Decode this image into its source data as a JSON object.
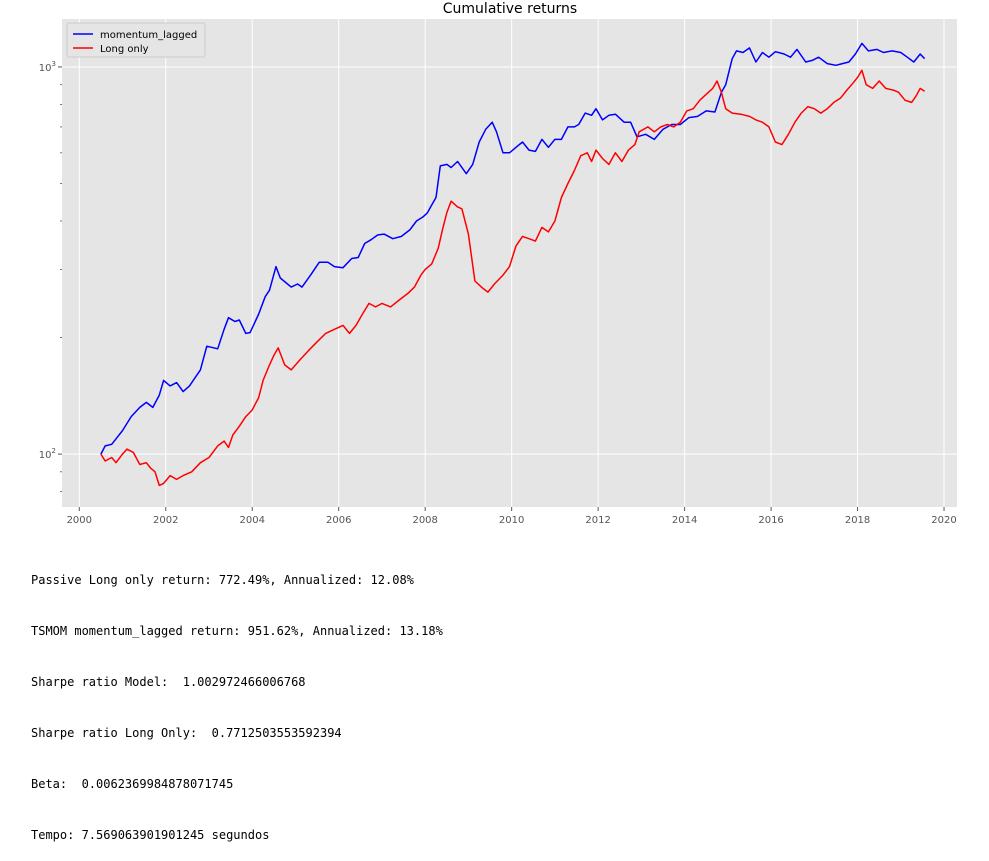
{
  "chart_data": {
    "type": "line",
    "title": "Cumulative returns",
    "xlabel": "",
    "ylabel": "",
    "y_scale": "log",
    "xlim": [
      1999.6,
      2020.3
    ],
    "ylim": [
      73,
      1330
    ],
    "x_ticks": [
      2000,
      2002,
      2004,
      2006,
      2008,
      2010,
      2012,
      2014,
      2016,
      2018,
      2020
    ],
    "y_ticks": [
      {
        "value": 100,
        "base": "10",
        "exp": "2"
      },
      {
        "value": 1000,
        "base": "10",
        "exp": "3"
      }
    ],
    "y_minor_ticks": [
      80,
      90,
      200,
      300,
      400,
      500,
      600,
      700,
      800,
      900
    ],
    "grid": true,
    "legend_position": "top-left",
    "background": "#e5e5e5",
    "series": [
      {
        "name": "momentum_lagged",
        "color": "#0000ff",
        "points": [
          [
            2000.5,
            100
          ],
          [
            2000.6,
            105
          ],
          [
            2000.75,
            106
          ],
          [
            2001.0,
            115
          ],
          [
            2001.2,
            125
          ],
          [
            2001.4,
            132
          ],
          [
            2001.55,
            136
          ],
          [
            2001.7,
            132
          ],
          [
            2001.85,
            142
          ],
          [
            2001.95,
            155
          ],
          [
            2002.1,
            150
          ],
          [
            2002.25,
            153
          ],
          [
            2002.4,
            145
          ],
          [
            2002.55,
            150
          ],
          [
            2002.8,
            165
          ],
          [
            2002.95,
            190
          ],
          [
            2003.2,
            187
          ],
          [
            2003.35,
            210
          ],
          [
            2003.45,
            225
          ],
          [
            2003.6,
            220
          ],
          [
            2003.7,
            222
          ],
          [
            2003.85,
            205
          ],
          [
            2003.95,
            206
          ],
          [
            2004.15,
            230
          ],
          [
            2004.3,
            255
          ],
          [
            2004.4,
            265
          ],
          [
            2004.55,
            305
          ],
          [
            2004.65,
            285
          ],
          [
            2004.9,
            270
          ],
          [
            2005.05,
            275
          ],
          [
            2005.15,
            270
          ],
          [
            2005.35,
            290
          ],
          [
            2005.55,
            313
          ],
          [
            2005.75,
            313
          ],
          [
            2005.9,
            305
          ],
          [
            2006.1,
            303
          ],
          [
            2006.3,
            320
          ],
          [
            2006.45,
            322
          ],
          [
            2006.6,
            350
          ],
          [
            2006.75,
            358
          ],
          [
            2006.9,
            368
          ],
          [
            2007.05,
            370
          ],
          [
            2007.25,
            360
          ],
          [
            2007.45,
            365
          ],
          [
            2007.65,
            380
          ],
          [
            2007.8,
            400
          ],
          [
            2007.95,
            410
          ],
          [
            2008.05,
            420
          ],
          [
            2008.15,
            440
          ],
          [
            2008.25,
            460
          ],
          [
            2008.35,
            555
          ],
          [
            2008.5,
            560
          ],
          [
            2008.6,
            550
          ],
          [
            2008.75,
            570
          ],
          [
            2008.95,
            530
          ],
          [
            2009.1,
            560
          ],
          [
            2009.25,
            640
          ],
          [
            2009.4,
            690
          ],
          [
            2009.55,
            720
          ],
          [
            2009.65,
            680
          ],
          [
            2009.8,
            600
          ],
          [
            2009.95,
            600
          ],
          [
            2010.1,
            620
          ],
          [
            2010.25,
            640
          ],
          [
            2010.4,
            610
          ],
          [
            2010.55,
            605
          ],
          [
            2010.7,
            650
          ],
          [
            2010.85,
            620
          ],
          [
            2011.0,
            650
          ],
          [
            2011.15,
            650
          ],
          [
            2011.3,
            700
          ],
          [
            2011.45,
            700
          ],
          [
            2011.55,
            710
          ],
          [
            2011.7,
            760
          ],
          [
            2011.85,
            750
          ],
          [
            2011.95,
            780
          ],
          [
            2012.1,
            730
          ],
          [
            2012.25,
            750
          ],
          [
            2012.4,
            755
          ],
          [
            2012.6,
            720
          ],
          [
            2012.75,
            720
          ],
          [
            2012.9,
            660
          ],
          [
            2013.1,
            670
          ],
          [
            2013.3,
            650
          ],
          [
            2013.5,
            690
          ],
          [
            2013.7,
            710
          ],
          [
            2013.9,
            710
          ],
          [
            2014.1,
            740
          ],
          [
            2014.3,
            745
          ],
          [
            2014.5,
            770
          ],
          [
            2014.7,
            765
          ],
          [
            2014.85,
            860
          ],
          [
            2014.95,
            900
          ],
          [
            2015.1,
            1050
          ],
          [
            2015.2,
            1100
          ],
          [
            2015.35,
            1090
          ],
          [
            2015.5,
            1120
          ],
          [
            2015.65,
            1030
          ],
          [
            2015.8,
            1090
          ],
          [
            2015.95,
            1060
          ],
          [
            2016.1,
            1095
          ],
          [
            2016.3,
            1080
          ],
          [
            2016.45,
            1060
          ],
          [
            2016.6,
            1110
          ],
          [
            2016.8,
            1030
          ],
          [
            2016.95,
            1040
          ],
          [
            2017.1,
            1060
          ],
          [
            2017.3,
            1020
          ],
          [
            2017.5,
            1010
          ],
          [
            2017.65,
            1020
          ],
          [
            2017.8,
            1030
          ],
          [
            2017.95,
            1080
          ],
          [
            2018.1,
            1150
          ],
          [
            2018.25,
            1100
          ],
          [
            2018.45,
            1110
          ],
          [
            2018.6,
            1090
          ],
          [
            2018.8,
            1100
          ],
          [
            2019.0,
            1090
          ],
          [
            2019.15,
            1060
          ],
          [
            2019.3,
            1030
          ],
          [
            2019.45,
            1080
          ],
          [
            2019.55,
            1050
          ]
        ]
      },
      {
        "name": "Long only",
        "color": "#ff0000",
        "points": [
          [
            2000.5,
            100
          ],
          [
            2000.6,
            96
          ],
          [
            2000.75,
            98
          ],
          [
            2000.85,
            95
          ],
          [
            2001.0,
            100
          ],
          [
            2001.1,
            103
          ],
          [
            2001.25,
            101
          ],
          [
            2001.4,
            94
          ],
          [
            2001.55,
            95
          ],
          [
            2001.65,
            92
          ],
          [
            2001.75,
            90
          ],
          [
            2001.85,
            83
          ],
          [
            2001.95,
            84
          ],
          [
            2002.1,
            88
          ],
          [
            2002.25,
            86
          ],
          [
            2002.4,
            88
          ],
          [
            2002.6,
            90
          ],
          [
            2002.8,
            95
          ],
          [
            2003.0,
            98
          ],
          [
            2003.2,
            105
          ],
          [
            2003.35,
            108
          ],
          [
            2003.45,
            104
          ],
          [
            2003.55,
            112
          ],
          [
            2003.7,
            118
          ],
          [
            2003.85,
            125
          ],
          [
            2004.0,
            130
          ],
          [
            2004.15,
            140
          ],
          [
            2004.25,
            155
          ],
          [
            2004.4,
            170
          ],
          [
            2004.5,
            180
          ],
          [
            2004.6,
            188
          ],
          [
            2004.75,
            170
          ],
          [
            2004.9,
            165
          ],
          [
            2005.1,
            175
          ],
          [
            2005.3,
            185
          ],
          [
            2005.5,
            195
          ],
          [
            2005.7,
            205
          ],
          [
            2005.9,
            210
          ],
          [
            2006.1,
            215
          ],
          [
            2006.25,
            205
          ],
          [
            2006.4,
            215
          ],
          [
            2006.55,
            230
          ],
          [
            2006.7,
            245
          ],
          [
            2006.85,
            240
          ],
          [
            2007.0,
            245
          ],
          [
            2007.2,
            240
          ],
          [
            2007.4,
            250
          ],
          [
            2007.6,
            260
          ],
          [
            2007.75,
            270
          ],
          [
            2007.9,
            290
          ],
          [
            2008.0,
            300
          ],
          [
            2008.15,
            310
          ],
          [
            2008.3,
            340
          ],
          [
            2008.4,
            380
          ],
          [
            2008.5,
            420
          ],
          [
            2008.6,
            450
          ],
          [
            2008.75,
            435
          ],
          [
            2008.85,
            430
          ],
          [
            2009.0,
            370
          ],
          [
            2009.15,
            280
          ],
          [
            2009.3,
            270
          ],
          [
            2009.45,
            262
          ],
          [
            2009.6,
            275
          ],
          [
            2009.8,
            290
          ],
          [
            2009.95,
            305
          ],
          [
            2010.1,
            345
          ],
          [
            2010.25,
            365
          ],
          [
            2010.4,
            360
          ],
          [
            2010.55,
            355
          ],
          [
            2010.7,
            385
          ],
          [
            2010.85,
            375
          ],
          [
            2011.0,
            400
          ],
          [
            2011.15,
            460
          ],
          [
            2011.3,
            500
          ],
          [
            2011.45,
            540
          ],
          [
            2011.6,
            590
          ],
          [
            2011.75,
            600
          ],
          [
            2011.85,
            570
          ],
          [
            2011.95,
            610
          ],
          [
            2012.1,
            580
          ],
          [
            2012.25,
            560
          ],
          [
            2012.4,
            600
          ],
          [
            2012.55,
            570
          ],
          [
            2012.7,
            610
          ],
          [
            2012.85,
            630
          ],
          [
            2012.95,
            680
          ],
          [
            2013.15,
            700
          ],
          [
            2013.3,
            680
          ],
          [
            2013.45,
            700
          ],
          [
            2013.6,
            710
          ],
          [
            2013.75,
            700
          ],
          [
            2013.9,
            720
          ],
          [
            2014.05,
            770
          ],
          [
            2014.2,
            780
          ],
          [
            2014.35,
            820
          ],
          [
            2014.5,
            850
          ],
          [
            2014.65,
            880
          ],
          [
            2014.75,
            920
          ],
          [
            2014.85,
            860
          ],
          [
            2014.95,
            780
          ],
          [
            2015.1,
            760
          ],
          [
            2015.3,
            755
          ],
          [
            2015.5,
            745
          ],
          [
            2015.65,
            730
          ],
          [
            2015.8,
            720
          ],
          [
            2015.95,
            700
          ],
          [
            2016.1,
            640
          ],
          [
            2016.25,
            630
          ],
          [
            2016.4,
            670
          ],
          [
            2016.55,
            720
          ],
          [
            2016.7,
            760
          ],
          [
            2016.85,
            790
          ],
          [
            2017.0,
            780
          ],
          [
            2017.15,
            760
          ],
          [
            2017.3,
            780
          ],
          [
            2017.45,
            810
          ],
          [
            2017.6,
            830
          ],
          [
            2017.75,
            870
          ],
          [
            2017.9,
            910
          ],
          [
            2018.0,
            940
          ],
          [
            2018.1,
            980
          ],
          [
            2018.2,
            900
          ],
          [
            2018.35,
            880
          ],
          [
            2018.5,
            920
          ],
          [
            2018.65,
            880
          ],
          [
            2018.85,
            870
          ],
          [
            2018.95,
            860
          ],
          [
            2019.1,
            820
          ],
          [
            2019.25,
            810
          ],
          [
            2019.35,
            840
          ],
          [
            2019.45,
            880
          ],
          [
            2019.55,
            865
          ]
        ]
      }
    ]
  },
  "stats": {
    "lines": [
      "Passive Long only return: 772.49%, Annualized: 12.08%",
      "TSMOM momentum_lagged return: 951.62%, Annualized: 13.18%",
      "Sharpe ratio Model:  1.002972466006768",
      "Sharpe ratio Long Only:  0.7712503553592394",
      "Beta:  0.0062369984878071745",
      "Tempo: 7.569063901901245 segundos"
    ]
  }
}
